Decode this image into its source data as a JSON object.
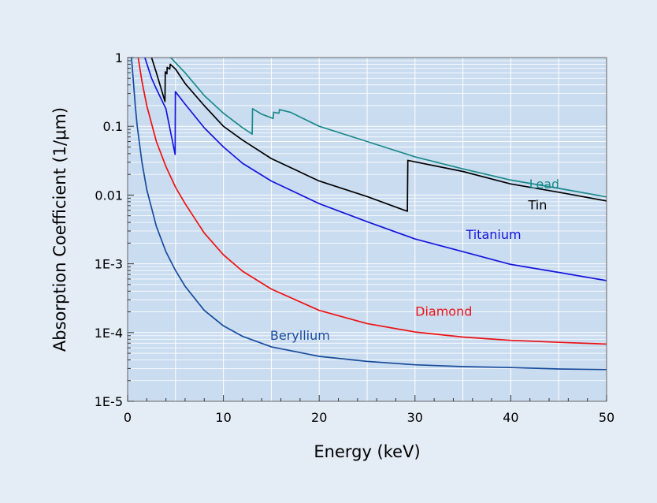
{
  "chart_data": {
    "type": "line",
    "xlabel": "Energy (keV)",
    "ylabel": "Absorption Coefficient (1/μm)",
    "xlim": [
      0,
      50
    ],
    "ylim": [
      1e-05,
      1
    ],
    "yscale": "log",
    "grid": true,
    "x_ticks": [
      0,
      10,
      20,
      30,
      40,
      50
    ],
    "x_tick_labels": [
      "0",
      "10",
      "20",
      "30",
      "40",
      "50"
    ],
    "y_ticks": [
      1e-05,
      0.0001,
      0.001,
      0.01,
      0.1,
      1
    ],
    "y_tick_labels": [
      "1E-5",
      "1E-4",
      "1E-3",
      "0.01",
      "0.1",
      "1"
    ],
    "colors": {
      "plot_background": "#cadcf0",
      "grid": "#ffffff",
      "page_background": "#e4ecf6"
    },
    "series": [
      {
        "name": "Lead",
        "color": "#1a8a8a",
        "points": [
          [
            4.5,
            1.0
          ],
          [
            6,
            0.6
          ],
          [
            8,
            0.28
          ],
          [
            10,
            0.155
          ],
          [
            12,
            0.095
          ],
          [
            13.0,
            0.077
          ],
          [
            13.04,
            0.18
          ],
          [
            14,
            0.15
          ],
          [
            15.2,
            0.13
          ],
          [
            15.25,
            0.16
          ],
          [
            15.8,
            0.155
          ],
          [
            15.85,
            0.175
          ],
          [
            17,
            0.16
          ],
          [
            20,
            0.1
          ],
          [
            25,
            0.06
          ],
          [
            30,
            0.036
          ],
          [
            35,
            0.024
          ],
          [
            40,
            0.0165
          ],
          [
            45,
            0.0125
          ],
          [
            50,
            0.0094
          ]
        ],
        "label_x": 43.5,
        "label_y": 0.0125
      },
      {
        "name": "Tin",
        "color": "#000000",
        "points": [
          [
            2.5,
            1.0
          ],
          [
            3.0,
            0.6
          ],
          [
            3.9,
            0.23
          ],
          [
            3.93,
            0.62
          ],
          [
            4.1,
            0.58
          ],
          [
            4.13,
            0.72
          ],
          [
            4.4,
            0.68
          ],
          [
            4.45,
            0.8
          ],
          [
            5,
            0.68
          ],
          [
            6,
            0.42
          ],
          [
            8,
            0.2
          ],
          [
            10,
            0.1
          ],
          [
            12,
            0.063
          ],
          [
            15,
            0.034
          ],
          [
            20,
            0.016
          ],
          [
            25,
            0.0095
          ],
          [
            29.2,
            0.0058
          ],
          [
            29.25,
            0.032
          ],
          [
            35,
            0.022
          ],
          [
            40,
            0.0145
          ],
          [
            45,
            0.011
          ],
          [
            50,
            0.0082
          ]
        ],
        "label_x": 42.8,
        "label_y": 0.0062
      },
      {
        "name": "Titanium",
        "color": "#1515dd",
        "points": [
          [
            1.8,
            1.0
          ],
          [
            2.5,
            0.5
          ],
          [
            3,
            0.35
          ],
          [
            4,
            0.18
          ],
          [
            4.96,
            0.039
          ],
          [
            4.98,
            0.32
          ],
          [
            6,
            0.21
          ],
          [
            8,
            0.095
          ],
          [
            10,
            0.05
          ],
          [
            12,
            0.029
          ],
          [
            15,
            0.016
          ],
          [
            20,
            0.0075
          ],
          [
            25,
            0.0041
          ],
          [
            30,
            0.0023
          ],
          [
            35,
            0.0015
          ],
          [
            40,
            0.00098
          ],
          [
            45,
            0.00075
          ],
          [
            50,
            0.00057
          ]
        ],
        "label_x": 38.2,
        "label_y": 0.0023
      },
      {
        "name": "Diamond",
        "color": "#ee1111",
        "points": [
          [
            1.1,
            1.0
          ],
          [
            1.5,
            0.45
          ],
          [
            2,
            0.2
          ],
          [
            3,
            0.06
          ],
          [
            4,
            0.026
          ],
          [
            5,
            0.013
          ],
          [
            6,
            0.0075
          ],
          [
            8,
            0.0028
          ],
          [
            10,
            0.00135
          ],
          [
            12,
            0.00078
          ],
          [
            15,
            0.00043
          ],
          [
            20,
            0.00021
          ],
          [
            25,
            0.000135
          ],
          [
            30,
            0.000102
          ],
          [
            35,
            8.6e-05
          ],
          [
            40,
            7.7e-05
          ],
          [
            45,
            7.2e-05
          ],
          [
            50,
            6.8e-05
          ]
        ],
        "label_x": 33,
        "label_y": 0.000175
      },
      {
        "name": "Beryllium",
        "color": "#184c9c",
        "points": [
          [
            0.4,
            1.0
          ],
          [
            0.6,
            0.45
          ],
          [
            0.8,
            0.2
          ],
          [
            1,
            0.1
          ],
          [
            1.5,
            0.03
          ],
          [
            2,
            0.012
          ],
          [
            3,
            0.0035
          ],
          [
            4,
            0.0015
          ],
          [
            5,
            0.0008
          ],
          [
            6,
            0.00047
          ],
          [
            8,
            0.00021
          ],
          [
            10,
            0.000125
          ],
          [
            12,
            8.8e-05
          ],
          [
            15,
            6.2e-05
          ],
          [
            20,
            4.5e-05
          ],
          [
            25,
            3.8e-05
          ],
          [
            30,
            3.4e-05
          ],
          [
            35,
            3.2e-05
          ],
          [
            40,
            3.1e-05
          ],
          [
            45,
            2.95e-05
          ],
          [
            50,
            2.9e-05
          ]
        ],
        "label_x": 18,
        "label_y": 7.8e-05
      }
    ]
  }
}
